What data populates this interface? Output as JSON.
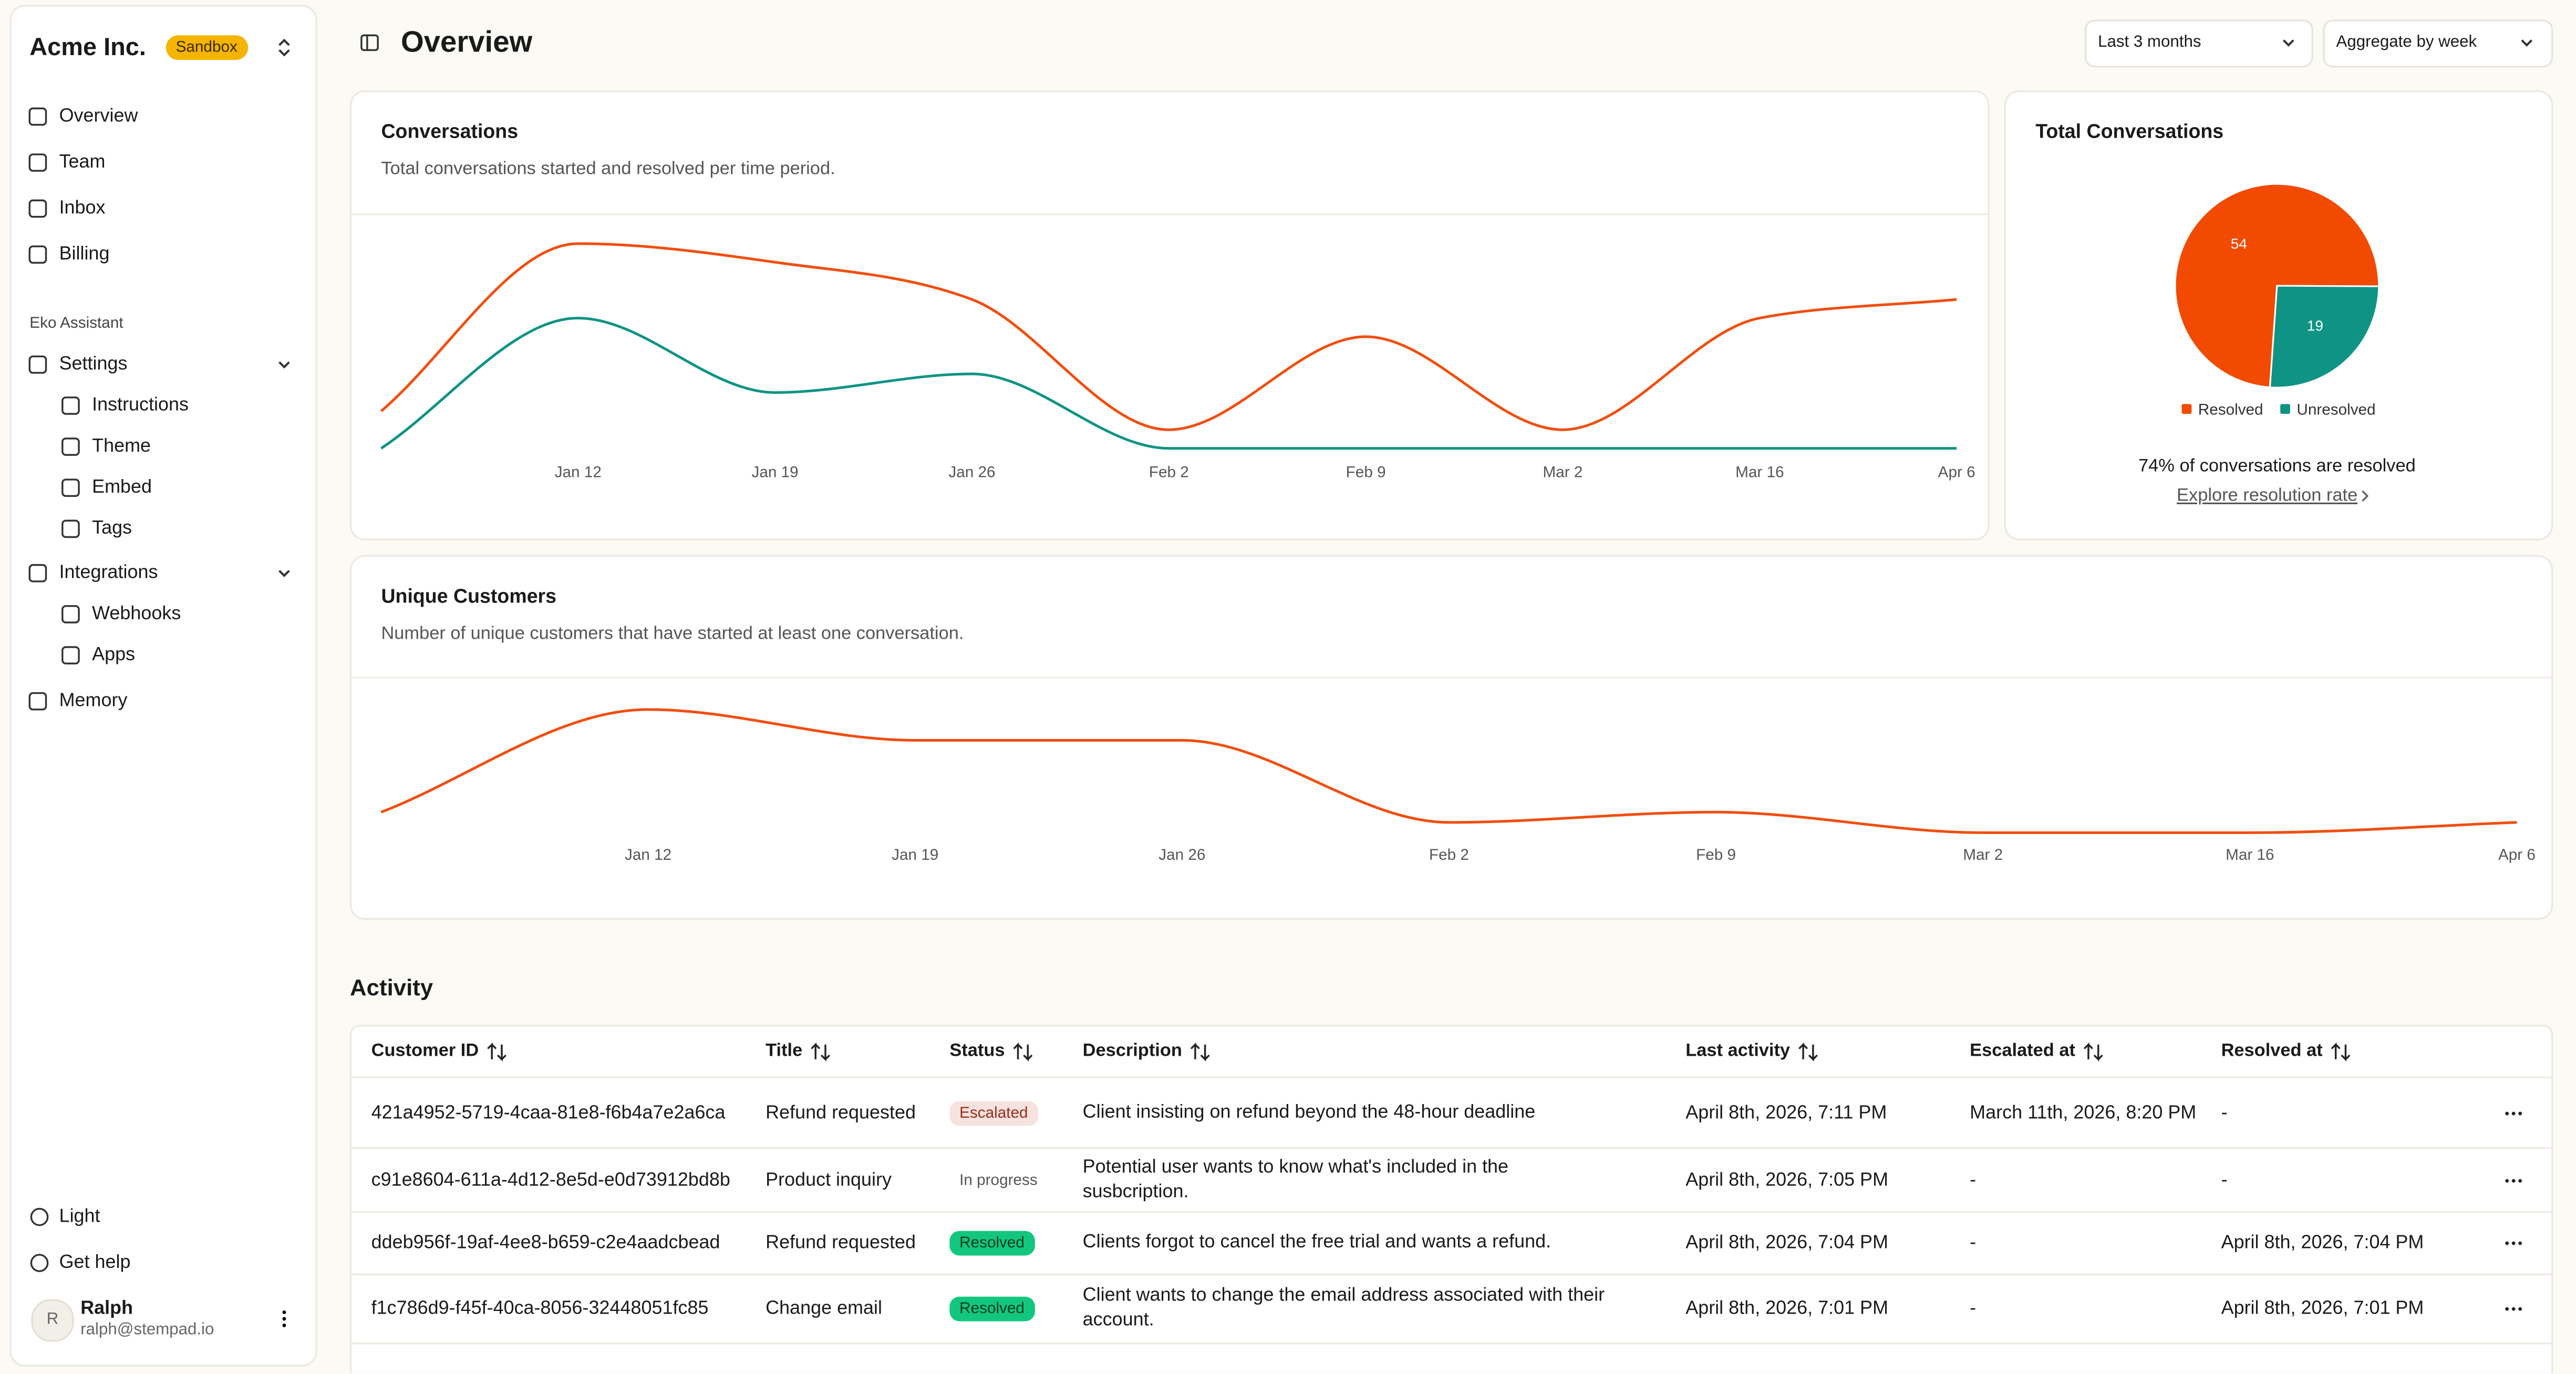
{
  "sidebar": {
    "org": "Acme Inc.",
    "badge": "Sandbox",
    "nav": [
      "Overview",
      "Team",
      "Inbox",
      "Billing"
    ],
    "section": "Eko Assistant",
    "settings": {
      "label": "Settings",
      "items": [
        "Instructions",
        "Theme",
        "Embed",
        "Tags"
      ]
    },
    "integrations": {
      "label": "Integrations",
      "items": [
        "Webhooks",
        "Apps"
      ]
    },
    "memory": "Memory",
    "footer": [
      "Light",
      "Get help"
    ],
    "user": {
      "initial": "R",
      "name": "Ralph",
      "email": "ralph@stempad.io"
    }
  },
  "header": {
    "title": "Overview",
    "range": "Last 3 months",
    "aggregate": "Aggregate by week"
  },
  "chart_data": [
    {
      "type": "line",
      "title": "Conversations",
      "subtitle": "Total conversations started and resolved per time period.",
      "categories": [
        null,
        "Jan 12",
        "Jan 19",
        "Jan 26",
        "Feb 2",
        "Feb 9",
        "Mar 2",
        "Mar 16",
        "Apr 6"
      ],
      "series": [
        {
          "color": "#f04e0f",
          "values": [
            2,
            11,
            10,
            8,
            1,
            6,
            1,
            7,
            8
          ]
        },
        {
          "color": "#0f9384",
          "values": [
            0,
            7,
            3,
            4,
            0,
            0,
            0,
            0,
            0
          ]
        }
      ],
      "ylim": [
        0,
        12
      ]
    },
    {
      "type": "line",
      "title": "Unique Customers",
      "subtitle": "Number of unique customers that have started at least one conversation.",
      "categories": [
        null,
        "Jan 12",
        "Jan 19",
        "Jan 26",
        "Feb 2",
        "Feb 9",
        "Mar 2",
        "Mar 16",
        "Apr 6"
      ],
      "color": "#f04e0f",
      "values": [
        2,
        12,
        9,
        9,
        1,
        2,
        0,
        0,
        1
      ],
      "ylim": [
        0,
        12
      ]
    },
    {
      "type": "pie",
      "title": "Total Conversations",
      "categories": [
        "Resolved",
        "Unresolved"
      ],
      "values": [
        54,
        19
      ],
      "colors": [
        "#f24a00",
        "#0f9384"
      ],
      "note": "74% of conversations are resolved",
      "link": "Explore resolution rate"
    }
  ],
  "activity": {
    "title": "Activity",
    "columns": [
      "Customer ID",
      "Title",
      "Status",
      "Description",
      "Last activity",
      "Escalated at",
      "Resolved at"
    ],
    "rows": [
      [
        "421a4952-5719-4caa-81e8-f6b4a7e2a6ca",
        "Refund requested",
        "Escalated",
        "Client insisting on refund beyond the 48-hour deadline",
        "April 8th, 2026, 7:11 PM",
        "March 11th, 2026, 8:20 PM",
        "-"
      ],
      [
        "c91e8604-611a-4d12-8e5d-e0d73912bd8b",
        "Product inquiry",
        "In progress",
        "Potential user wants to know what's included in the susbcription.",
        "April 8th, 2026, 7:05 PM",
        "-",
        "-"
      ],
      [
        "ddeb956f-19af-4ee8-b659-c2e4aadcbead",
        "Refund requested",
        "Resolved",
        "Clients forgot to cancel the free trial and wants a refund.",
        "April 8th, 2026, 7:04 PM",
        "-",
        "April 8th, 2026, 7:04 PM"
      ],
      [
        "f1c786d9-f45f-40ca-8056-32448051fc85",
        "Change email",
        "Resolved",
        "Client wants to change the email address associated with their account.",
        "April 8th, 2026, 7:01 PM",
        "-",
        "April 8th, 2026, 7:01 PM"
      ]
    ]
  }
}
